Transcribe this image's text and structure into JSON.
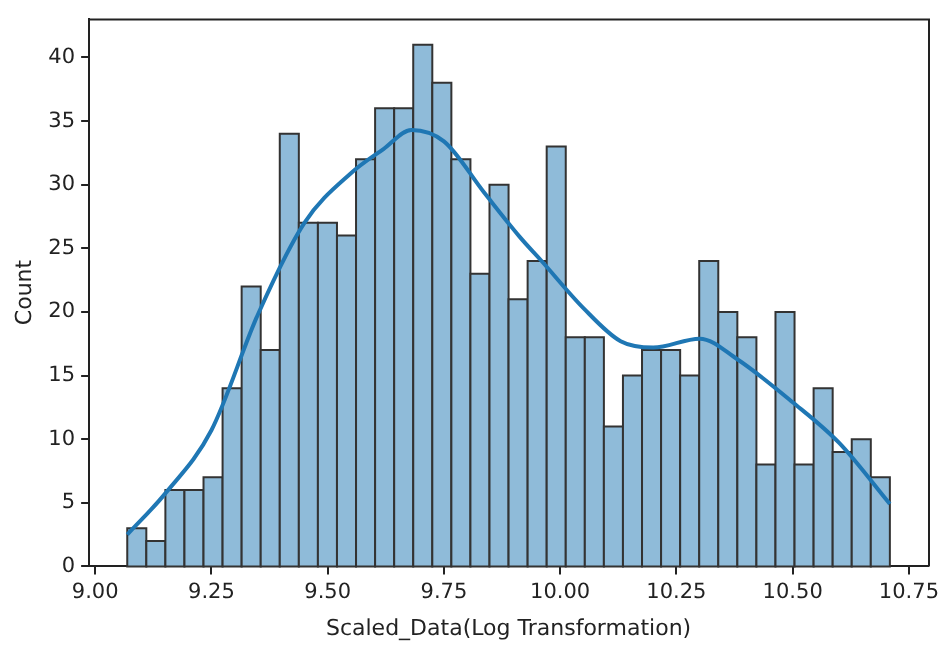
{
  "chart_data": {
    "type": "histogram",
    "xlabel": "Scaled_Data(Log Transformation)",
    "ylabel": "Count",
    "series": [
      {
        "color": "#8fbbd9",
        "bins": [
          9.069,
          9.11,
          9.151,
          9.192,
          9.233,
          9.274,
          9.315,
          9.356,
          9.397,
          9.438,
          9.479,
          9.52,
          9.561,
          9.602,
          9.643,
          9.684,
          9.725,
          9.766,
          9.807,
          9.848,
          9.889,
          9.93,
          9.971,
          10.012,
          10.053,
          10.094,
          10.135,
          10.176,
          10.217,
          10.258,
          10.299,
          10.34,
          10.381,
          10.422,
          10.463,
          10.504,
          10.545,
          10.586,
          10.627,
          10.668,
          10.709
        ],
        "values": [
          3,
          2,
          6,
          6,
          7,
          14,
          22,
          17,
          34,
          27,
          27,
          26,
          32,
          36,
          36,
          41,
          38,
          32,
          23,
          30,
          21,
          24,
          33,
          18,
          18,
          11,
          15,
          17,
          17,
          15,
          24,
          20,
          18,
          8,
          20,
          8,
          14,
          9,
          10,
          7
        ]
      },
      {
        "type": "line",
        "color": "#1f77b4",
        "x": [
          9.069,
          9.15,
          9.25,
          9.35,
          9.45,
          9.55,
          9.62,
          9.68,
          9.75,
          9.836,
          9.913,
          9.96,
          10.05,
          10.13,
          10.2,
          10.3,
          10.38,
          10.5,
          10.6,
          10.709
        ],
        "values": [
          2.5,
          5.7,
          10.7,
          19.8,
          27,
          30.9,
          32.8,
          34.3,
          33.4,
          29.4,
          25.9,
          24,
          20.3,
          17.7,
          17.2,
          17.9,
          16.3,
          12.9,
          9.7,
          4.9
        ]
      }
    ],
    "xlim": [
      8.987,
      10.791
    ],
    "xticks": [
      {
        "value": 9,
        "label": "9.00"
      },
      9.25,
      {
        "value": 9.5,
        "label": "9.50"
      },
      9.75,
      {
        "value": 10,
        "label": "10.00"
      },
      10.25,
      {
        "value": 10.5,
        "label": "10.50"
      },
      10.75
    ],
    "ylim": [
      0,
      43.05
    ],
    "yticks": [
      0,
      5,
      10,
      15,
      20,
      25,
      30,
      35,
      40
    ],
    "grid": false,
    "legend": false
  }
}
